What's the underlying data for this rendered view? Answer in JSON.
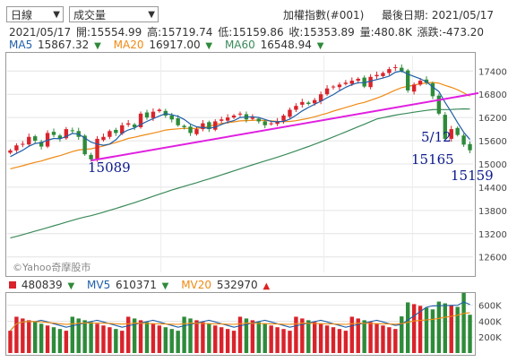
{
  "toolbar": {
    "period_select": "日線",
    "indicator_select": "成交量",
    "index_name": "加權指數(#001)",
    "last_date_label": "最後日期: 2021/05/17"
  },
  "quote": {
    "date": "2021/05/17",
    "open": "開:15554.99",
    "high": "高:15719.74",
    "low": "低:15159.86",
    "close": "收:15353.89",
    "volume": "量:480.8K",
    "change": "漲跌:-473.20"
  },
  "ma_legend": {
    "ma5_label": "MA5",
    "ma5_value": "15867.32",
    "ma20_label": "MA20",
    "ma20_value": "16917.00",
    "ma60_label": "MA60",
    "ma60_value": "16548.94"
  },
  "vol_legend": {
    "vol_value": "480839",
    "mv5_label": "MV5",
    "mv5_value": "610371",
    "mv20_label": "MV20",
    "mv20_value": "532970"
  },
  "watermark": "©Yahoo奇摩股市",
  "colors": {
    "up": "#d9232b",
    "down": "#2e8b3a",
    "ma5": "#1f5fa8",
    "ma20": "#ef8a14",
    "ma60": "#3a8a5a",
    "trendline": "#e020e0",
    "annotation": "#0a1a8c"
  },
  "chart_data": [
    {
      "type": "candlestick",
      "title": "",
      "y_ticks": [
        17400,
        16800,
        16200,
        15600,
        15000,
        14400,
        13800,
        13200,
        12600
      ],
      "ylim": [
        12200,
        17800
      ],
      "annotations": [
        "15089",
        "5/12",
        "15165",
        "15159"
      ],
      "trendline": {
        "from": 15089,
        "to": 16830
      },
      "closes": [
        15350,
        15480,
        15520,
        15700,
        15600,
        15450,
        15800,
        15750,
        15650,
        15900,
        15850,
        15700,
        15250,
        15120,
        15650,
        15700,
        15850,
        15800,
        16000,
        16050,
        15950,
        16300,
        16200,
        16350,
        16400,
        16250,
        16150,
        16000,
        15950,
        15800,
        15900,
        16050,
        15900,
        16100,
        16150,
        16200,
        16250,
        16300,
        16150,
        16200,
        16100,
        16000,
        16050,
        16100,
        16250,
        16400,
        16500,
        16600,
        16550,
        16650,
        16800,
        16950,
        17000,
        17050,
        17100,
        17150,
        17200,
        17000,
        17250,
        17300,
        17350,
        17450,
        17500,
        17400,
        16900,
        17050,
        17150,
        17100,
        16750,
        16300,
        15650,
        15900,
        15750,
        15500,
        15354
      ],
      "ma_lines": [
        "MA5",
        "MA20",
        "MA60"
      ]
    },
    {
      "type": "bar",
      "title": "",
      "y_ticks": [
        "600K",
        "400K",
        "200K"
      ],
      "ylim": [
        0,
        720000
      ],
      "bar_count": 75,
      "ma_lines": [
        "MV5",
        "MV20"
      ]
    }
  ]
}
